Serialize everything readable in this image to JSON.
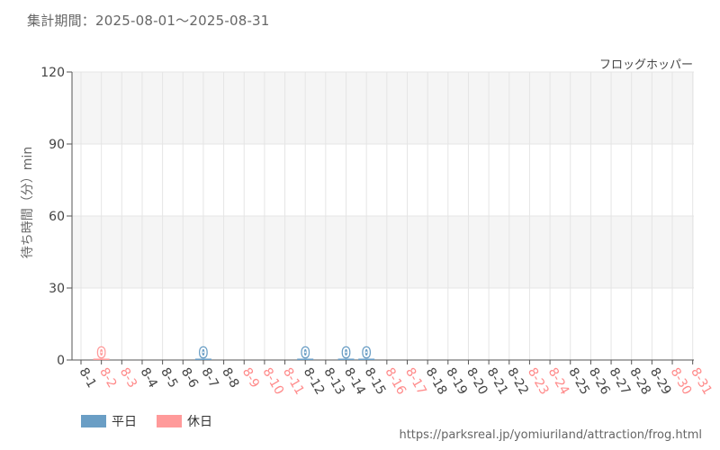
{
  "header": {
    "period": "集計期間：2025-08-01～2025-08-31",
    "attraction": "フロッグホッパー"
  },
  "footer": {
    "source_url": "https://parksreal.jp/yomiuriland/attraction/frog.html"
  },
  "colors": {
    "weekday": "#6a9ec5",
    "holiday": "#ff9a9a",
    "weekday_text": "#444444",
    "holiday_text": "#ff8a8a",
    "band": "#f5f5f5",
    "grid": "#e5e5e5"
  },
  "chart_data": {
    "type": "bar",
    "ylabel": "待ち時間（分）min",
    "ylim": [
      0,
      120
    ],
    "yticks": [
      "0",
      "30",
      "60",
      "90",
      "120"
    ],
    "categories": [
      "8-1",
      "8-2",
      "8-3",
      "8-4",
      "8-5",
      "8-6",
      "8-7",
      "8-8",
      "8-9",
      "8-10",
      "8-11",
      "8-12",
      "8-13",
      "8-14",
      "8-15",
      "8-16",
      "8-17",
      "8-18",
      "8-19",
      "8-20",
      "8-21",
      "8-22",
      "8-23",
      "8-24",
      "8-25",
      "8-26",
      "8-27",
      "8-28",
      "8-29",
      "8-30",
      "8-31"
    ],
    "day_types": [
      "weekday",
      "holiday",
      "holiday",
      "weekday",
      "weekday",
      "weekday",
      "weekday",
      "weekday",
      "holiday",
      "holiday",
      "holiday",
      "weekday",
      "weekday",
      "weekday",
      "weekday",
      "holiday",
      "holiday",
      "weekday",
      "weekday",
      "weekday",
      "weekday",
      "weekday",
      "holiday",
      "holiday",
      "weekday",
      "weekday",
      "weekday",
      "weekday",
      "weekday",
      "holiday",
      "holiday"
    ],
    "values": [
      null,
      0,
      null,
      null,
      null,
      null,
      0,
      null,
      null,
      null,
      null,
      0,
      null,
      0,
      0,
      null,
      null,
      null,
      null,
      null,
      null,
      null,
      null,
      null,
      null,
      null,
      null,
      null,
      null,
      null,
      null
    ],
    "data_labels": [
      null,
      "0",
      null,
      null,
      null,
      null,
      "0",
      null,
      null,
      null,
      null,
      "0",
      null,
      "0",
      "0",
      null,
      null,
      null,
      null,
      null,
      null,
      null,
      null,
      null,
      null,
      null,
      null,
      null,
      null,
      null,
      null
    ],
    "legend": [
      {
        "name": "平日",
        "key": "weekday"
      },
      {
        "name": "休日",
        "key": "holiday"
      }
    ],
    "grid": true
  }
}
